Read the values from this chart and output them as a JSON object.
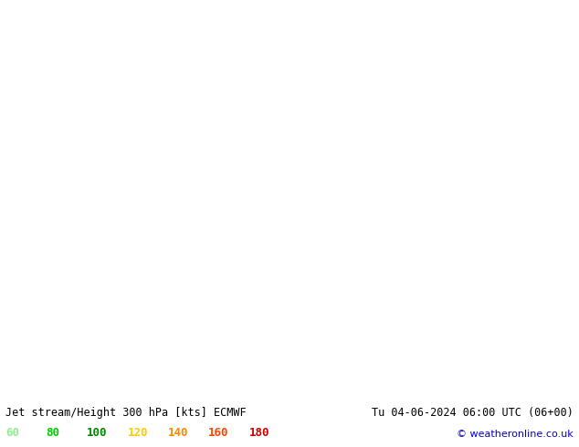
{
  "title_left": "Jet stream/Height 300 hPa [kts] ECMWF",
  "title_right": "Tu 04-06-2024 06:00 UTC (06+00)",
  "copyright": "© weatheronline.co.uk",
  "legend_values": [
    60,
    80,
    100,
    120,
    140,
    160,
    180
  ],
  "legend_colors": [
    "#90ee90",
    "#00cc00",
    "#008800",
    "#ffcc00",
    "#ff8800",
    "#ff4400",
    "#cc0000"
  ],
  "background_color": "#e8e8f0",
  "land_color": "#c8e8a0",
  "ocean_color": "#dce8f0",
  "contour_color": "#000000",
  "figsize": [
    6.34,
    4.9
  ],
  "dpi": 100,
  "map_extent": [
    -180,
    -50,
    10,
    85
  ]
}
